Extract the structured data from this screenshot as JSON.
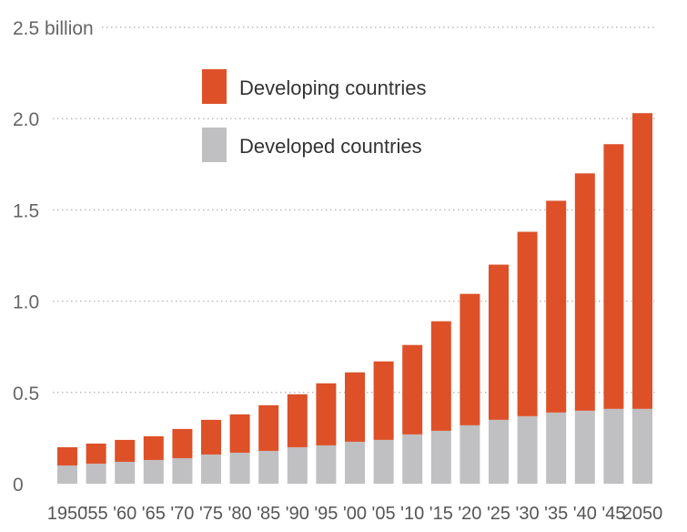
{
  "chart_data": {
    "type": "bar",
    "stacked": true,
    "categories": [
      "1950",
      "'55",
      "'60",
      "'65",
      "'70",
      "'75",
      "'80",
      "'85",
      "'90",
      "'95",
      "'00",
      "'05",
      "'10",
      "'15",
      "'20",
      "'25",
      "'30",
      "'35",
      "'40",
      "'45",
      "2050"
    ],
    "series": [
      {
        "name": "Developed countries",
        "color": "#c0bfc1",
        "values": [
          0.1,
          0.11,
          0.12,
          0.13,
          0.14,
          0.16,
          0.17,
          0.18,
          0.2,
          0.21,
          0.23,
          0.24,
          0.27,
          0.29,
          0.32,
          0.35,
          0.37,
          0.39,
          0.4,
          0.41,
          0.41
        ]
      },
      {
        "name": "Developing countries",
        "color": "#dd5028",
        "values": [
          0.1,
          0.11,
          0.12,
          0.13,
          0.16,
          0.19,
          0.21,
          0.25,
          0.29,
          0.34,
          0.38,
          0.43,
          0.49,
          0.6,
          0.72,
          0.85,
          1.01,
          1.16,
          1.3,
          1.45,
          1.62
        ]
      }
    ],
    "y_ticks": [
      {
        "value": 0,
        "label": "0"
      },
      {
        "value": 0.5,
        "label": "0.5"
      },
      {
        "value": 1.0,
        "label": "1.0"
      },
      {
        "value": 1.5,
        "label": "1.5"
      },
      {
        "value": 2.0,
        "label": "2.0"
      },
      {
        "value": 2.5,
        "label": "2.5 billion"
      }
    ],
    "ylim": [
      0,
      2.5
    ],
    "grid": true,
    "legend": {
      "placement": "top-left",
      "entries": [
        {
          "label": "Developing countries",
          "color": "#dd5028"
        },
        {
          "label": "Developed countries",
          "color": "#c0bfc1"
        }
      ]
    },
    "title": "",
    "xlabel": "",
    "ylabel": ""
  }
}
